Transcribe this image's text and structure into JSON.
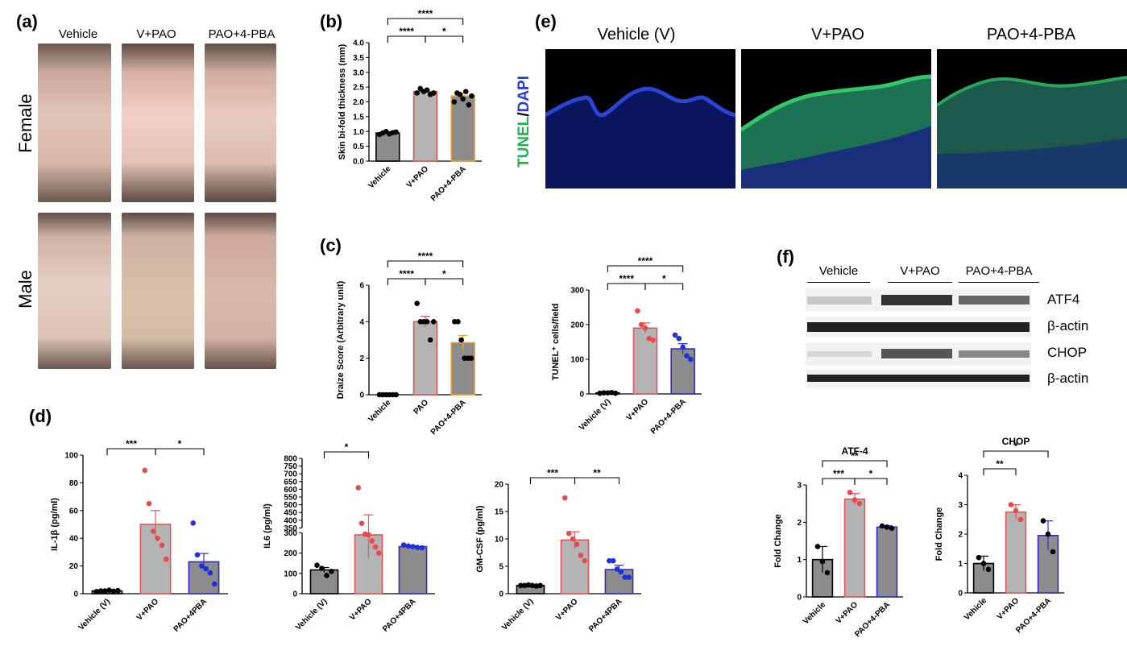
{
  "panels": {
    "a": {
      "label": "(a)",
      "columns": [
        "Vehicle",
        "V+PAO",
        "PAO+4-PBA"
      ],
      "rows": [
        "Female",
        "Male"
      ]
    },
    "b": {
      "label": "(b)"
    },
    "c": {
      "label": "(c)"
    },
    "d": {
      "label": "(d)"
    },
    "e": {
      "label": "(e)",
      "columns": [
        "Vehicle (V)",
        "V+PAO",
        "PAO+4-PBA"
      ],
      "stain_tunel": "TUNEL",
      "stain_sep": "/",
      "stain_dapi": "DAPI"
    },
    "f": {
      "label": "(f)",
      "groups": [
        "Vehicle",
        "V+PAO",
        "PAO+4-PBA"
      ],
      "bands": [
        "ATF4",
        "β-actin",
        "CHOP",
        "β-actin"
      ]
    }
  },
  "colors": {
    "vehicle_bar": "#8c8c8c",
    "pao_bar": "#b4b4b4",
    "pao_edge": "#e05555",
    "pba_bar_b": "#8c8c8c",
    "pba_edge_orange": "#f0a030",
    "pba_edge_blue": "#2a2ad0",
    "dot_black": "#000000",
    "dot_red": "#e84a4a",
    "dot_blue": "#2030d8",
    "tunel_green": "#22b24c",
    "dapi_blue": "#2a3ad8"
  },
  "chart_data": [
    {
      "id": "b",
      "type": "bar",
      "categories": [
        "Vehicle",
        "V+PAO",
        "PAO+4-PBA"
      ],
      "values": [
        0.95,
        2.35,
        2.2
      ],
      "errors": [
        0.02,
        0.05,
        0.1
      ],
      "ylabel": "Skin bi-fold thickness (mm)",
      "ylim": [
        0,
        4
      ],
      "yticks": [
        "0.0",
        "0.5",
        "1.0",
        "1.5",
        "2.0",
        "2.5",
        "3.0",
        "3.5",
        "4.0"
      ],
      "points": [
        [
          0.9,
          0.95,
          1.0,
          0.92,
          0.96,
          0.98
        ],
        [
          2.3,
          2.45,
          2.35,
          2.4,
          2.25,
          2.3
        ],
        [
          2.0,
          2.3,
          2.25,
          2.1,
          2.35,
          1.9,
          2.2
        ]
      ],
      "significance": [
        [
          "1",
          "2",
          "****"
        ],
        [
          "1",
          "3",
          "****"
        ],
        [
          "2",
          "3",
          "*"
        ]
      ]
    },
    {
      "id": "c1",
      "type": "bar",
      "categories": [
        "Vehicle",
        "PAO",
        "PAO+4-PBA"
      ],
      "values": [
        0,
        4.0,
        2.85
      ],
      "errors": [
        0,
        0.3,
        0.4
      ],
      "ylabel": "Draize Score (Arbitrary unit)",
      "ylim": [
        0,
        6
      ],
      "yticks": [
        "0",
        "2",
        "4",
        "6"
      ],
      "points": [
        [
          0,
          0,
          0,
          0,
          0,
          0
        ],
        [
          5,
          4,
          4,
          4,
          3,
          4
        ],
        [
          4,
          4,
          3,
          2,
          2,
          2
        ]
      ],
      "significance": [
        [
          "1",
          "2",
          "****"
        ],
        [
          "1",
          "3",
          "****"
        ],
        [
          "2",
          "3",
          "*"
        ]
      ]
    },
    {
      "id": "c2",
      "type": "bar",
      "categories": [
        "Vehicle (V)",
        "V+PAO",
        "PAO+4-PBA"
      ],
      "values": [
        3,
        190,
        130
      ],
      "errors": [
        1,
        15,
        15
      ],
      "ylabel": "TUNEL⁺ cells/field",
      "ylim": [
        0,
        300
      ],
      "yticks": [
        "0",
        "100",
        "200",
        "300"
      ],
      "points": [
        [
          2,
          3,
          3,
          4,
          2
        ],
        [
          240,
          200,
          190,
          160,
          155
        ],
        [
          170,
          160,
          135,
          110,
          100
        ]
      ],
      "significance": [
        [
          "1",
          "2",
          "****"
        ],
        [
          "1",
          "3",
          "****"
        ],
        [
          "2",
          "3",
          "*"
        ]
      ]
    },
    {
      "id": "d1",
      "type": "bar",
      "categories": [
        "Vehicle (V)",
        "V+PAO",
        "PAO+4PBA"
      ],
      "values": [
        2,
        50,
        23
      ],
      "errors": [
        0.3,
        10,
        6
      ],
      "ylabel": "IL-1β (pg/ml)",
      "ylim": [
        0,
        100
      ],
      "yticks": [
        "0",
        "20",
        "40",
        "60",
        "80",
        "100"
      ],
      "points": [
        [
          1.5,
          2,
          2,
          2.5,
          1.8,
          2.2
        ],
        [
          89,
          65,
          45,
          40,
          35,
          25
        ],
        [
          51,
          28,
          20,
          18,
          15,
          7
        ]
      ],
      "significance": [
        [
          "1",
          "2",
          "***"
        ],
        [
          "2",
          "3",
          "*"
        ]
      ]
    },
    {
      "id": "d2",
      "type": "bar",
      "categories": [
        "Vehicle (V)",
        "V+PAO",
        "PAO+4PBA"
      ],
      "values": [
        117,
        305,
        232
      ],
      "errors": [
        12,
        130,
        4
      ],
      "ylabel": "IL6 (pg/ml)",
      "ylim": [
        0,
        800
      ],
      "yticks_low": [
        "0",
        "100",
        "200",
        "300"
      ],
      "yticks_high": [
        "350",
        "400",
        "450",
        "500",
        "550",
        "600",
        "650",
        "700",
        "750",
        "800"
      ],
      "points": [
        [
          140,
          125,
          90,
          110
        ],
        [
          610,
          380,
          310,
          290,
          260,
          230,
          200
        ],
        [
          240,
          235,
          232,
          228,
          226
        ]
      ],
      "significance": [
        [
          "1",
          "2",
          "*"
        ]
      ]
    },
    {
      "id": "d3",
      "type": "bar",
      "categories": [
        "Vehicle (V)",
        "V+PAO",
        "PAO+4PBA"
      ],
      "values": [
        1.5,
        9.8,
        4.4
      ],
      "errors": [
        0.1,
        1.5,
        0.8
      ],
      "ylabel": "GM-CSF (pg/ml)",
      "ylim": [
        0,
        20
      ],
      "yticks": [
        "0",
        "5",
        "10",
        "15",
        "20"
      ],
      "points": [
        [
          1.5,
          1.5,
          1.6,
          1.5,
          1.4,
          1.5
        ],
        [
          17.5,
          11,
          10,
          9,
          7,
          6
        ],
        [
          6,
          6,
          4.5,
          4,
          3,
          3
        ]
      ],
      "significance": [
        [
          "1",
          "2",
          "***"
        ],
        [
          "2",
          "3",
          "**"
        ]
      ]
    },
    {
      "id": "f1",
      "type": "bar",
      "title": "ATF-4",
      "categories": [
        "Vehicle",
        "V+PAO",
        "PAO+4-PBA"
      ],
      "values": [
        1.0,
        2.62,
        1.87
      ],
      "errors": [
        0.35,
        0.15,
        0.04
      ],
      "ylabel": "Fold Change",
      "ylim": [
        0,
        3
      ],
      "yticks": [
        "0",
        "1",
        "2",
        "3"
      ],
      "points": [
        [
          1.35,
          0.95,
          0.65
        ],
        [
          2.8,
          2.6,
          2.5
        ],
        [
          1.9,
          1.87,
          1.84
        ]
      ],
      "significance": [
        [
          "1",
          "2",
          "***"
        ],
        [
          "1",
          "3",
          "**"
        ],
        [
          "2",
          "3",
          "*"
        ]
      ]
    },
    {
      "id": "f2",
      "type": "bar",
      "title": "CHOP",
      "categories": [
        "Vehicle",
        "V+PAO",
        "PAO+4-PBA"
      ],
      "values": [
        1.0,
        2.75,
        1.95
      ],
      "errors": [
        0.25,
        0.25,
        0.5
      ],
      "ylabel": "Fold Change",
      "ylim": [
        0,
        4
      ],
      "yticks": [
        "0",
        "1",
        "2",
        "3",
        "4"
      ],
      "points": [
        [
          1.2,
          1.0,
          0.8
        ],
        [
          3.0,
          2.8,
          2.5
        ],
        [
          2.45,
          2.0,
          1.4
        ]
      ],
      "significance": [
        [
          "1",
          "2",
          "**"
        ],
        [
          "1",
          "3",
          "*"
        ]
      ]
    }
  ]
}
